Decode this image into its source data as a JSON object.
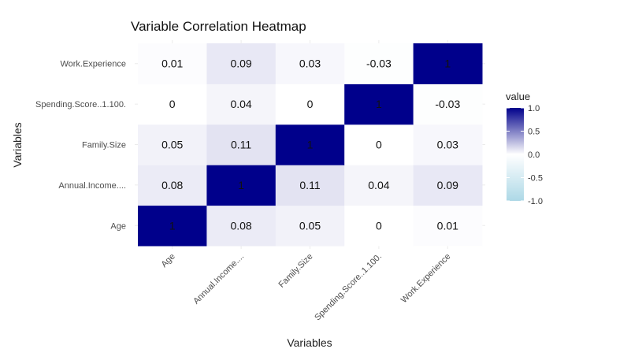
{
  "chart_data": {
    "type": "heatmap",
    "title": "Variable Correlation Heatmap",
    "xlabel": "Variables",
    "ylabel": "Variables",
    "categories": [
      "Age",
      "Annual.Income....",
      "Family.Size",
      "Spending.Score..1.100.",
      "Work.Experience"
    ],
    "cells": [
      {
        "x": "Age",
        "y": "Age",
        "value": 1,
        "label": "1"
      },
      {
        "x": "Annual.Income....",
        "y": "Age",
        "value": 0.08,
        "label": "0.08"
      },
      {
        "x": "Family.Size",
        "y": "Age",
        "value": 0.05,
        "label": "0.05"
      },
      {
        "x": "Spending.Score..1.100.",
        "y": "Age",
        "value": 0,
        "label": "0"
      },
      {
        "x": "Work.Experience",
        "y": "Age",
        "value": 0.01,
        "label": "0.01"
      },
      {
        "x": "Age",
        "y": "Annual.Income....",
        "value": 0.08,
        "label": "0.08"
      },
      {
        "x": "Annual.Income....",
        "y": "Annual.Income....",
        "value": 1,
        "label": "1"
      },
      {
        "x": "Family.Size",
        "y": "Annual.Income....",
        "value": 0.11,
        "label": "0.11"
      },
      {
        "x": "Spending.Score..1.100.",
        "y": "Annual.Income....",
        "value": 0.04,
        "label": "0.04"
      },
      {
        "x": "Work.Experience",
        "y": "Annual.Income....",
        "value": 0.09,
        "label": "0.09"
      },
      {
        "x": "Age",
        "y": "Family.Size",
        "value": 0.05,
        "label": "0.05"
      },
      {
        "x": "Annual.Income....",
        "y": "Family.Size",
        "value": 0.11,
        "label": "0.11"
      },
      {
        "x": "Family.Size",
        "y": "Family.Size",
        "value": 1,
        "label": "1"
      },
      {
        "x": "Spending.Score..1.100.",
        "y": "Family.Size",
        "value": 0,
        "label": "0"
      },
      {
        "x": "Work.Experience",
        "y": "Family.Size",
        "value": 0.03,
        "label": "0.03"
      },
      {
        "x": "Age",
        "y": "Spending.Score..1.100.",
        "value": 0,
        "label": "0"
      },
      {
        "x": "Annual.Income....",
        "y": "Spending.Score..1.100.",
        "value": 0.04,
        "label": "0.04"
      },
      {
        "x": "Family.Size",
        "y": "Spending.Score..1.100.",
        "value": 0,
        "label": "0"
      },
      {
        "x": "Spending.Score..1.100.",
        "y": "Spending.Score..1.100.",
        "value": 1,
        "label": "1"
      },
      {
        "x": "Work.Experience",
        "y": "Spending.Score..1.100.",
        "value": -0.03,
        "label": "-0.03"
      },
      {
        "x": "Age",
        "y": "Work.Experience",
        "value": 0.01,
        "label": "0.01"
      },
      {
        "x": "Annual.Income....",
        "y": "Work.Experience",
        "value": 0.09,
        "label": "0.09"
      },
      {
        "x": "Family.Size",
        "y": "Work.Experience",
        "value": 0.03,
        "label": "0.03"
      },
      {
        "x": "Spending.Score..1.100.",
        "y": "Work.Experience",
        "value": -0.03,
        "label": "-0.03"
      },
      {
        "x": "Work.Experience",
        "y": "Work.Experience",
        "value": 1,
        "label": "1"
      }
    ],
    "legend": {
      "title": "value",
      "ticks": [
        "1.0",
        "0.5",
        "0.0",
        "-0.5",
        "-1.0"
      ],
      "tick_values": [
        1,
        0.5,
        0,
        -0.5,
        -1
      ],
      "range": [
        -1,
        1
      ],
      "placement": "right"
    },
    "colors": {
      "high": "#00008b",
      "mid": "#ffffff",
      "low": "#add8e6"
    },
    "grid": true
  }
}
